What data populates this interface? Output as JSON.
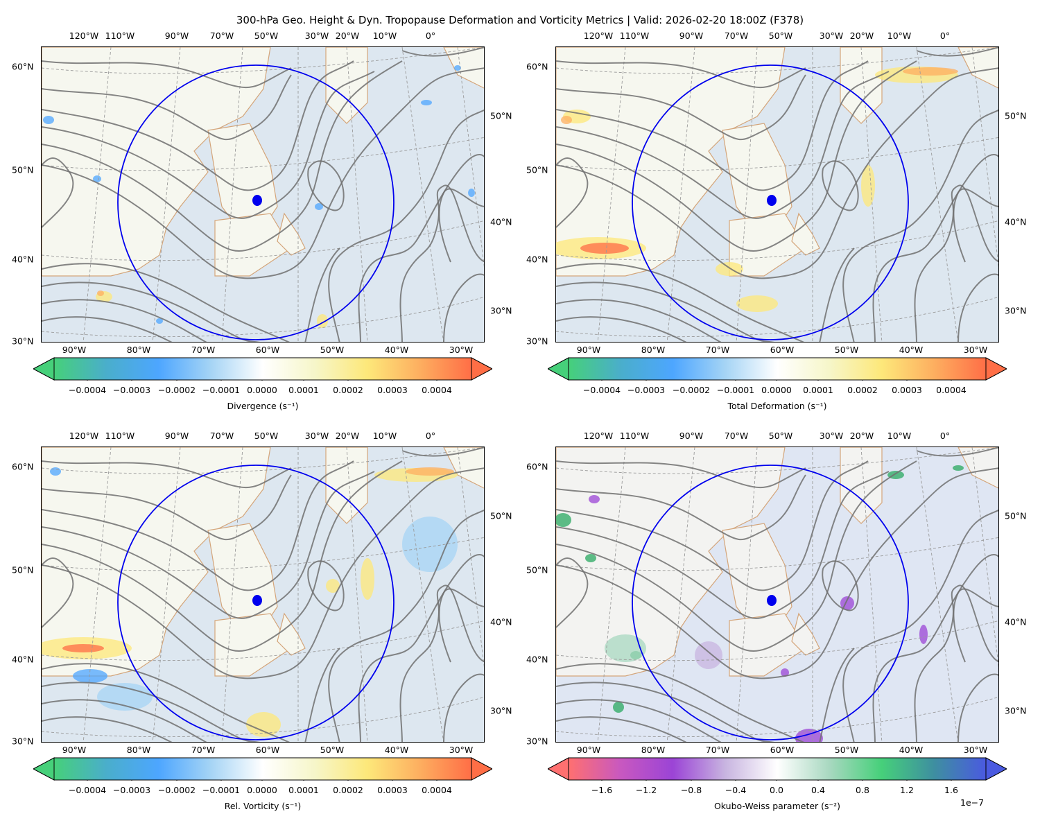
{
  "title": "300-hPa Geo. Height & Dyn. Tropopause Deformation and Vorticity Metrics |  Valid: 2026-02-20 18:00Z (F378)",
  "top_lon_labels": [
    "120°W",
    "110°W",
    "90°W",
    "70°W",
    "50°W",
    "30°W",
    "20°W",
    "10°W",
    "0°"
  ],
  "bottom_lon_labels": [
    "90°W",
    "80°W",
    "70°W",
    "60°W",
    "50°W",
    "40°W",
    "30°W"
  ],
  "left_lat_labels": [
    "60°N",
    "50°N",
    "40°N",
    "30°N"
  ],
  "right_lat_labels": [
    "50°N",
    "40°N",
    "30°N"
  ],
  "panels": [
    {
      "id": "divergence",
      "field": "Divergence",
      "colorbar_label": "Divergence (s⁻¹)",
      "colorbar_ticks": [
        "−0.0004",
        "−0.0003",
        "−0.0002",
        "−0.0001",
        "0.0000",
        "0.0001",
        "0.0002",
        "0.0003",
        "0.0004"
      ],
      "colorbar_range": [
        -0.00048,
        0.00048
      ],
      "colormap": [
        "#46d07a",
        "#4aaecb",
        "#4da6ff",
        "#a5d4f5",
        "#ffffff",
        "#f6f6c9",
        "#fde87a",
        "#fdaf60",
        "#ff6e46"
      ],
      "colorbar_exponent": ""
    },
    {
      "id": "total-deformation",
      "field": "Total Deformation",
      "colorbar_label": "Total Deformation (s⁻¹)",
      "colorbar_ticks": [
        "−0.0004",
        "−0.0003",
        "−0.0002",
        "−0.0001",
        "0.0000",
        "0.0001",
        "0.0002",
        "0.0003",
        "0.0004"
      ],
      "colorbar_range": [
        -0.00048,
        0.00048
      ],
      "colormap": [
        "#46d07a",
        "#4aaecb",
        "#4da6ff",
        "#a5d4f5",
        "#ffffff",
        "#f6f6c9",
        "#fde87a",
        "#fdaf60",
        "#ff6e46"
      ],
      "colorbar_exponent": ""
    },
    {
      "id": "relative-vorticity",
      "field": "Rel. Vorticity",
      "colorbar_label": "Rel. Vorticity (s⁻¹)",
      "colorbar_ticks": [
        "−0.0004",
        "−0.0003",
        "−0.0002",
        "−0.0001",
        "0.0000",
        "0.0001",
        "0.0002",
        "0.0003",
        "0.0004"
      ],
      "colorbar_range": [
        -0.00048,
        0.00048
      ],
      "colormap": [
        "#46d07a",
        "#4aaecb",
        "#4da6ff",
        "#a5d4f5",
        "#ffffff",
        "#f6f6c9",
        "#fde87a",
        "#fdaf60",
        "#ff6e46"
      ],
      "colorbar_exponent": ""
    },
    {
      "id": "okubo-weiss",
      "field": "Okubo-Weiss parameter",
      "colorbar_label": "Okubo-Weiss parameter (s⁻²)",
      "colorbar_ticks": [
        "−1.6",
        "−1.2",
        "−0.8",
        "−0.4",
        "0.0",
        "0.4",
        "0.8",
        "1.2",
        "1.6"
      ],
      "colorbar_range": [
        -1.95,
        1.95
      ],
      "colormap": [
        "#ff7070",
        "#c858c0",
        "#9b44d6",
        "#c8b4e0",
        "#ffffff",
        "#a8d8c0",
        "#46d07a",
        "#3e8fa0",
        "#4a5ae0"
      ],
      "colorbar_exponent": "1e−7"
    }
  ],
  "overlay": {
    "contour_color": "#707070",
    "circle_color": "#0000ee",
    "point_marker_color": "#0000ee",
    "coastline_color": "#d4a57a",
    "ocean_color": "#dde7f0",
    "land_color": "#f6f7ef"
  }
}
